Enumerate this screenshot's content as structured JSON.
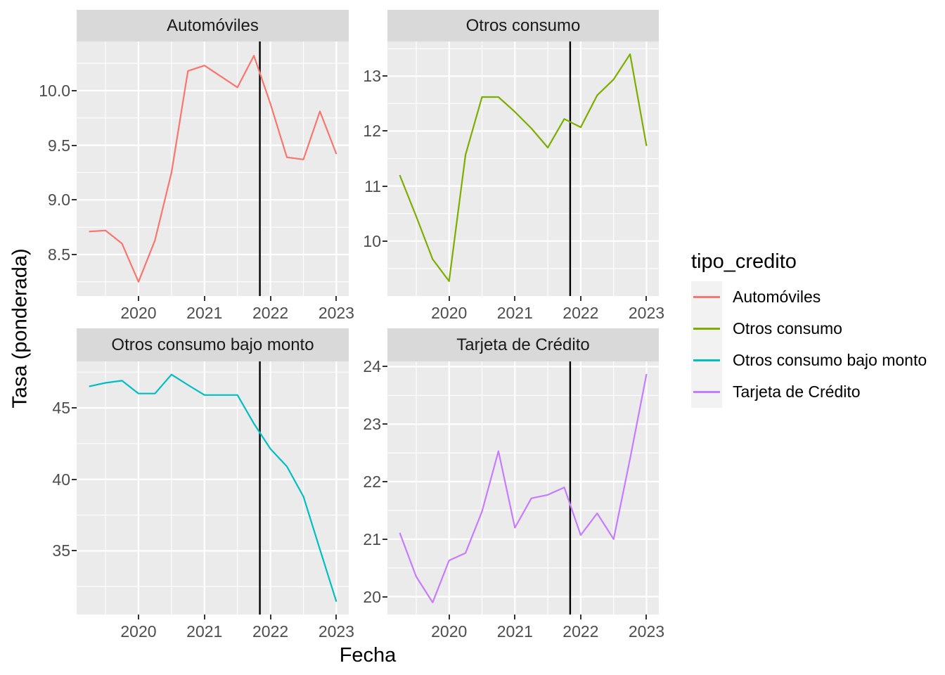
{
  "figure": {
    "y_axis_title": "Tasa (ponderada)",
    "x_axis_title": "Fecha",
    "legend_title": "tipo_credito"
  },
  "style": {
    "panel_bg": "#EBEBEB",
    "strip_bg": "#D9D9D9",
    "grid_color": "#FFFFFF",
    "vline_color": "#000000",
    "tick_color": "#333333",
    "tick_text_color": "#4D4D4D"
  },
  "chart_data": {
    "type": "line",
    "facet_variable": "tipo_credito",
    "facet_layout": "2x2",
    "grid": true,
    "legend_position": "right",
    "x": [
      2019.25,
      2019.5,
      2019.75,
      2020.0,
      2020.25,
      2020.5,
      2020.75,
      2021.0,
      2021.25,
      2021.5,
      2021.75,
      2022.0,
      2022.25,
      2022.5,
      2022.75,
      2023.0
    ],
    "xlim": [
      2019.0625,
      2023.1875
    ],
    "x_ticks": [
      2020,
      2021,
      2022,
      2023
    ],
    "x_tick_labels": [
      "2020",
      "2021",
      "2022",
      "2023"
    ],
    "vline_x": 2021.84,
    "xlabel": "Fecha",
    "ylabel": "Tasa (ponderada)",
    "panels": [
      {
        "title": "Automóviles",
        "color": "#F8766D",
        "values": [
          8.71,
          8.72,
          8.6,
          8.25,
          8.63,
          9.25,
          10.18,
          10.23,
          10.13,
          10.03,
          10.32,
          9.88,
          9.39,
          9.37,
          9.81,
          9.42
        ],
        "yticks": [
          8.5,
          9.0,
          9.5,
          10.0
        ],
        "ytick_labels": [
          "8.5",
          "9.0",
          "9.5",
          "10.0"
        ],
        "ylim": [
          8.12,
          10.45
        ]
      },
      {
        "title": "Otros consumo",
        "color": "#7CAE00",
        "values": [
          11.2,
          10.45,
          9.67,
          9.27,
          11.57,
          12.62,
          12.62,
          12.35,
          12.05,
          11.7,
          12.22,
          12.07,
          12.65,
          12.94,
          13.4,
          11.73
        ],
        "yticks": [
          10,
          11,
          12,
          13
        ],
        "ytick_labels": [
          "10",
          "11",
          "12",
          "13"
        ],
        "ylim": [
          9.0,
          13.63
        ]
      },
      {
        "title": "Otros consumo bajo monto",
        "color": "#00BFC4",
        "values": [
          46.5,
          46.75,
          46.9,
          46.0,
          46.0,
          47.33,
          46.6,
          45.9,
          45.9,
          45.9,
          43.9,
          42.13,
          40.9,
          38.8,
          35.1,
          31.44
        ],
        "yticks": [
          35,
          40,
          45
        ],
        "ytick_labels": [
          "35",
          "40",
          "45"
        ],
        "ylim": [
          30.54,
          48.25
        ]
      },
      {
        "title": "Tarjeta de Crédito",
        "color": "#C77CFF",
        "values": [
          21.11,
          20.35,
          19.9,
          20.63,
          20.76,
          21.48,
          22.53,
          21.2,
          21.71,
          21.77,
          21.9,
          21.07,
          21.45,
          21.0,
          22.4,
          23.87
        ],
        "yticks": [
          20,
          21,
          22,
          23,
          24
        ],
        "ytick_labels": [
          "20",
          "21",
          "22",
          "23",
          "24"
        ],
        "ylim": [
          19.69,
          24.09
        ]
      }
    ],
    "legend": {
      "title": "tipo_credito",
      "entries": [
        {
          "label": "Automóviles",
          "color": "#F8766D"
        },
        {
          "label": "Otros consumo",
          "color": "#7CAE00"
        },
        {
          "label": "Otros consumo bajo monto",
          "color": "#00BFC4"
        },
        {
          "label": "Tarjeta de Crédito",
          "color": "#C77CFF"
        }
      ]
    }
  }
}
